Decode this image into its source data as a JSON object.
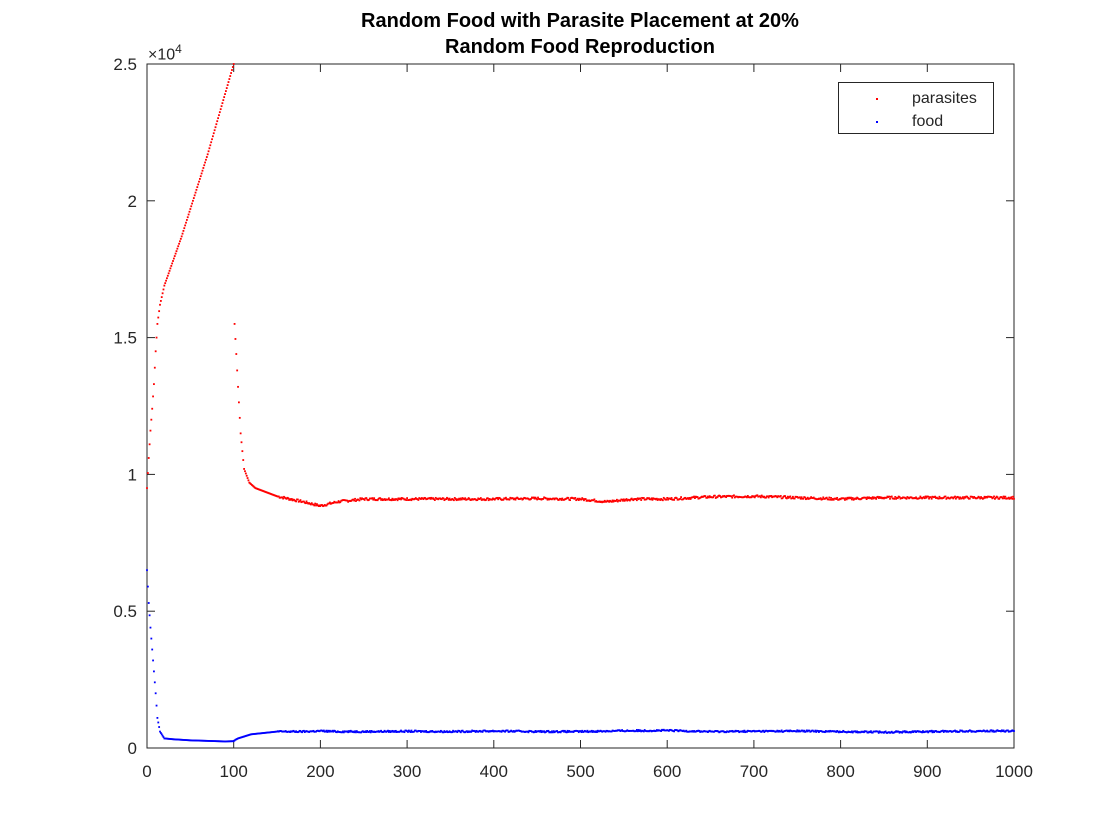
{
  "chart_data": {
    "type": "scatter",
    "title": [
      "Random Food with Parasite Placement at 20%",
      "Random Food Reproduction"
    ],
    "xlabel": "",
    "ylabel": "",
    "xlim": [
      0,
      1000
    ],
    "ylim": [
      0,
      25000
    ],
    "y_exponent_label": "×10",
    "y_exponent_power": "4",
    "x_ticks": [
      0,
      100,
      200,
      300,
      400,
      500,
      600,
      700,
      800,
      900,
      1000
    ],
    "x_tick_labels": [
      "0",
      "100",
      "200",
      "300",
      "400",
      "500",
      "600",
      "700",
      "800",
      "900",
      "1000"
    ],
    "y_ticks": [
      0,
      5000,
      10000,
      15000,
      20000,
      25000
    ],
    "y_tick_labels": [
      "0",
      "0.5",
      "1",
      "1.5",
      "2",
      "2.5"
    ],
    "grid": false,
    "legend_position": "top-right",
    "series": [
      {
        "name": "parasites",
        "color": "#ff0000",
        "x": [
          0,
          2,
          4,
          6,
          8,
          10,
          12,
          15,
          20,
          30,
          40,
          50,
          60,
          70,
          80,
          90,
          100,
          101,
          103,
          105,
          108,
          112,
          118,
          125,
          150,
          180,
          200,
          220,
          250,
          300,
          350,
          400,
          450,
          500,
          530,
          560,
          600,
          650,
          700,
          750,
          800,
          850,
          900,
          950,
          1000
        ],
        "y": [
          9500,
          10600,
          11600,
          12400,
          13300,
          14500,
          15500,
          16200,
          16900,
          17800,
          18700,
          19700,
          20700,
          21700,
          22800,
          23900,
          25000,
          15500,
          14400,
          13200,
          11500,
          10200,
          9700,
          9500,
          9200,
          9000,
          8850,
          9000,
          9100,
          9100,
          9100,
          9100,
          9120,
          9100,
          9000,
          9100,
          9100,
          9180,
          9200,
          9150,
          9100,
          9150,
          9150,
          9150,
          9150
        ]
      },
      {
        "name": "food",
        "color": "#0000ff",
        "x": [
          0,
          2,
          4,
          6,
          8,
          10,
          12,
          15,
          20,
          30,
          40,
          50,
          60,
          70,
          80,
          90,
          100,
          102,
          105,
          110,
          120,
          150,
          180,
          200,
          220,
          250,
          300,
          350,
          400,
          450,
          500,
          550,
          600,
          650,
          700,
          750,
          800,
          850,
          900,
          950,
          1000
        ],
        "y": [
          6500,
          5300,
          4400,
          3600,
          2800,
          2000,
          1100,
          600,
          350,
          320,
          300,
          280,
          270,
          260,
          250,
          240,
          250,
          300,
          350,
          400,
          500,
          600,
          600,
          620,
          600,
          600,
          610,
          600,
          620,
          600,
          600,
          630,
          640,
          600,
          610,
          620,
          600,
          580,
          600,
          620,
          620
        ]
      }
    ]
  }
}
